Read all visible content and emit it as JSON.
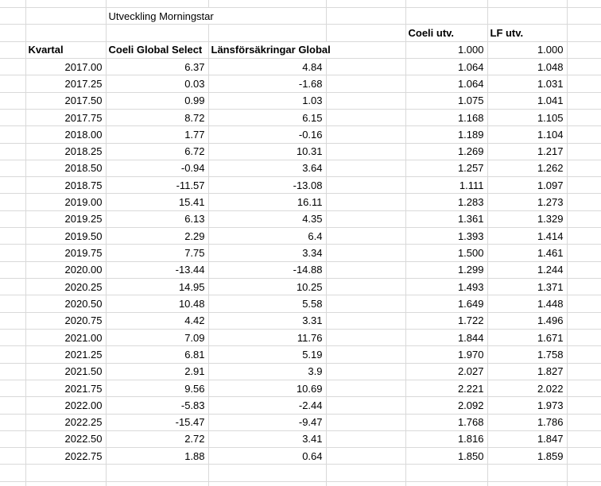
{
  "sheet": {
    "title": "Utveckling Morningstar",
    "utv_headers": {
      "coeli": "Coeli utv.",
      "lf": "LF utv."
    },
    "col_headers": {
      "kvartal": "Kvartal",
      "coeli": "Coeli Global Select",
      "lf": "Länsförsäkringar Global"
    },
    "start_values": {
      "coeli": "1.000",
      "lf": "1.000"
    },
    "rows": [
      {
        "kvartal": "2017.00",
        "coeli": "6.37",
        "lf": "4.84",
        "coeli_utv": "1.064",
        "lf_utv": "1.048"
      },
      {
        "kvartal": "2017.25",
        "coeli": "0.03",
        "lf": "-1.68",
        "coeli_utv": "1.064",
        "lf_utv": "1.031"
      },
      {
        "kvartal": "2017.50",
        "coeli": "0.99",
        "lf": "1.03",
        "coeli_utv": "1.075",
        "lf_utv": "1.041"
      },
      {
        "kvartal": "2017.75",
        "coeli": "8.72",
        "lf": "6.15",
        "coeli_utv": "1.168",
        "lf_utv": "1.105"
      },
      {
        "kvartal": "2018.00",
        "coeli": "1.77",
        "lf": "-0.16",
        "coeli_utv": "1.189",
        "lf_utv": "1.104"
      },
      {
        "kvartal": "2018.25",
        "coeli": "6.72",
        "lf": "10.31",
        "coeli_utv": "1.269",
        "lf_utv": "1.217"
      },
      {
        "kvartal": "2018.50",
        "coeli": "-0.94",
        "lf": "3.64",
        "coeli_utv": "1.257",
        "lf_utv": "1.262"
      },
      {
        "kvartal": "2018.75",
        "coeli": "-11.57",
        "lf": "-13.08",
        "coeli_utv": "1.111",
        "lf_utv": "1.097"
      },
      {
        "kvartal": "2019.00",
        "coeli": "15.41",
        "lf": "16.11",
        "coeli_utv": "1.283",
        "lf_utv": "1.273"
      },
      {
        "kvartal": "2019.25",
        "coeli": "6.13",
        "lf": "4.35",
        "coeli_utv": "1.361",
        "lf_utv": "1.329"
      },
      {
        "kvartal": "2019.50",
        "coeli": "2.29",
        "lf": "6.4",
        "coeli_utv": "1.393",
        "lf_utv": "1.414"
      },
      {
        "kvartal": "2019.75",
        "coeli": "7.75",
        "lf": "3.34",
        "coeli_utv": "1.500",
        "lf_utv": "1.461"
      },
      {
        "kvartal": "2020.00",
        "coeli": "-13.44",
        "lf": "-14.88",
        "coeli_utv": "1.299",
        "lf_utv": "1.244"
      },
      {
        "kvartal": "2020.25",
        "coeli": "14.95",
        "lf": "10.25",
        "coeli_utv": "1.493",
        "lf_utv": "1.371"
      },
      {
        "kvartal": "2020.50",
        "coeli": "10.48",
        "lf": "5.58",
        "coeli_utv": "1.649",
        "lf_utv": "1.448"
      },
      {
        "kvartal": "2020.75",
        "coeli": "4.42",
        "lf": "3.31",
        "coeli_utv": "1.722",
        "lf_utv": "1.496"
      },
      {
        "kvartal": "2021.00",
        "coeli": "7.09",
        "lf": "11.76",
        "coeli_utv": "1.844",
        "lf_utv": "1.671"
      },
      {
        "kvartal": "2021.25",
        "coeli": "6.81",
        "lf": "5.19",
        "coeli_utv": "1.970",
        "lf_utv": "1.758"
      },
      {
        "kvartal": "2021.50",
        "coeli": "2.91",
        "lf": "3.9",
        "coeli_utv": "2.027",
        "lf_utv": "1.827"
      },
      {
        "kvartal": "2021.75",
        "coeli": "9.56",
        "lf": "10.69",
        "coeli_utv": "2.221",
        "lf_utv": "2.022"
      },
      {
        "kvartal": "2022.00",
        "coeli": "-5.83",
        "lf": "-2.44",
        "coeli_utv": "2.092",
        "lf_utv": "1.973"
      },
      {
        "kvartal": "2022.25",
        "coeli": "-15.47",
        "lf": "-9.47",
        "coeli_utv": "1.768",
        "lf_utv": "1.786"
      },
      {
        "kvartal": "2022.50",
        "coeli": "2.72",
        "lf": "3.41",
        "coeli_utv": "1.816",
        "lf_utv": "1.847"
      },
      {
        "kvartal": "2022.75",
        "coeli": "1.88",
        "lf": "0.64",
        "coeli_utv": "1.850",
        "lf_utv": "1.859"
      }
    ],
    "colors": {
      "gridline": "#d9d9d9",
      "text": "#000000",
      "background": "#ffffff"
    }
  }
}
